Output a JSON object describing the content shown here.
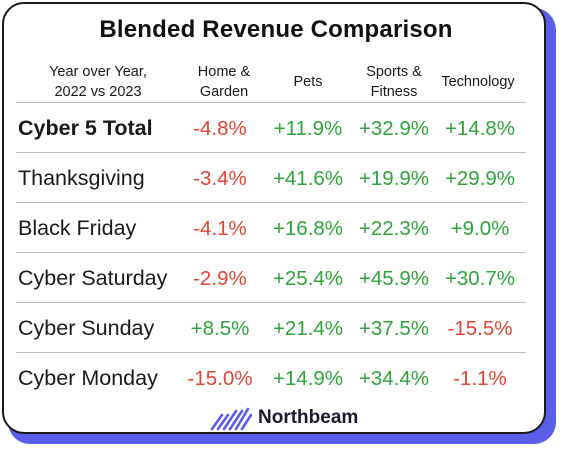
{
  "title": "Blended Revenue Comparison",
  "header": {
    "label_line1": "Year over Year,",
    "label_line2": "2022 vs 2023",
    "columns": [
      {
        "line1": "Home &",
        "line2": "Garden"
      },
      {
        "line1": "Pets",
        "line2": ""
      },
      {
        "line1": "Sports &",
        "line2": "Fitness"
      },
      {
        "line1": "Technology",
        "line2": ""
      }
    ]
  },
  "rows": [
    {
      "label": "Cyber 5 Total",
      "values": [
        "-4.8%",
        "+11.9%",
        "+32.9%",
        "+14.8%"
      ]
    },
    {
      "label": "Thanksgiving",
      "values": [
        "-3.4%",
        "+41.6%",
        "+19.9%",
        "+29.9%"
      ]
    },
    {
      "label": "Black Friday",
      "values": [
        "-4.1%",
        "+16.8%",
        "+22.3%",
        "+9.0%"
      ]
    },
    {
      "label": "Cyber Saturday",
      "values": [
        "-2.9%",
        "+25.4%",
        "+45.9%",
        "+30.7%"
      ]
    },
    {
      "label": "Cyber Sunday",
      "values": [
        "+8.5%",
        "+21.4%",
        "+37.5%",
        "-15.5%"
      ]
    },
    {
      "label": "Cyber Monday",
      "values": [
        "-15.0%",
        "+14.9%",
        "+34.4%",
        "-1.1%"
      ]
    }
  ],
  "brand": "Northbeam",
  "colors": {
    "positive": "#2ea43a",
    "negative": "#e04434",
    "accent": "#5b5ee8"
  },
  "chart_data": {
    "type": "table",
    "title": "Blended Revenue Comparison",
    "columns": [
      "Home & Garden",
      "Pets",
      "Sports & Fitness",
      "Technology"
    ],
    "rows": [
      {
        "name": "Cyber 5 Total",
        "values": [
          -4.8,
          11.9,
          32.9,
          14.8
        ]
      },
      {
        "name": "Thanksgiving",
        "values": [
          -3.4,
          41.6,
          19.9,
          29.9
        ]
      },
      {
        "name": "Black Friday",
        "values": [
          -4.1,
          16.8,
          22.3,
          9.0
        ]
      },
      {
        "name": "Cyber Saturday",
        "values": [
          -2.9,
          25.4,
          45.9,
          30.7
        ]
      },
      {
        "name": "Cyber Sunday",
        "values": [
          8.5,
          21.4,
          37.5,
          -15.5
        ]
      },
      {
        "name": "Cyber Monday",
        "values": [
          -15.0,
          14.9,
          34.4,
          -1.1
        ]
      }
    ]
  }
}
